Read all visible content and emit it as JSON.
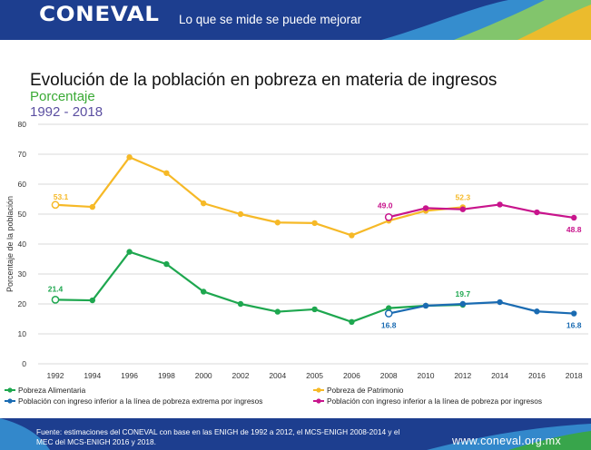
{
  "header": {
    "logo": "CONEVAL",
    "slogan": "Lo que se mide se puede mejorar"
  },
  "footer": {
    "source": "Fuente: estimaciones del CONEVAL con base en las ENIGH de 1992 a 2012, el MCS-ENIGH 2008-2014 y el MEC del MCS-ENIGH 2016 y 2018.",
    "url": "www.coneval.org.mx"
  },
  "colors": {
    "brand_blue": "#1d3e8f",
    "accent_green": "#3aaa35",
    "accent_purple": "#5b4fa1"
  },
  "chart_data": {
    "type": "line",
    "title": "Evolución de la población en pobreza en materia de ingresos",
    "subtitle": "Porcentaje",
    "period": "1992 - 2018",
    "ylabel": "Porcentaje de la población",
    "xlabel": "",
    "ylim": [
      0,
      80
    ],
    "yticks": [
      0,
      10,
      20,
      30,
      40,
      50,
      60,
      70,
      80
    ],
    "categories": [
      "1992",
      "1994",
      "1996",
      "1998",
      "2000",
      "2002",
      "2004",
      "2005",
      "2006",
      "2008",
      "2010",
      "2012",
      "2014",
      "2016",
      "2018"
    ],
    "grid": "horizontal",
    "legend_position": "bottom",
    "series": [
      {
        "name": "Pobreza de Patrimonio",
        "color": "#f6b927",
        "values": [
          53.1,
          52.4,
          69.0,
          63.7,
          53.6,
          50.0,
          47.2,
          47.0,
          42.9,
          47.8,
          51.1,
          52.3,
          null,
          null,
          null
        ]
      },
      {
        "name": "Pobreza Alimentaria",
        "color": "#1ea74f",
        "values": [
          21.4,
          21.2,
          37.4,
          33.3,
          24.1,
          20.0,
          17.4,
          18.2,
          14.0,
          18.6,
          19.4,
          19.7,
          null,
          null,
          null
        ]
      },
      {
        "name": "Población con ingreso inferior a la línea de pobreza extrema por ingresos",
        "color": "#1a6bb2",
        "values": [
          null,
          null,
          null,
          null,
          null,
          null,
          null,
          null,
          null,
          16.8,
          19.4,
          20.0,
          20.6,
          17.5,
          16.8
        ]
      },
      {
        "name": "Población con ingreso inferior a la línea de pobreza por ingresos",
        "color": "#c8148c",
        "values": [
          null,
          null,
          null,
          null,
          null,
          null,
          null,
          null,
          null,
          49.0,
          52.0,
          51.6,
          53.2,
          50.6,
          48.8
        ]
      }
    ],
    "annotations": [
      {
        "series": 0,
        "index": 0,
        "text": "53.1"
      },
      {
        "series": 0,
        "index": 11,
        "text": "52.3"
      },
      {
        "series": 1,
        "index": 0,
        "text": "21.4"
      },
      {
        "series": 1,
        "index": 11,
        "text": "19.7"
      },
      {
        "series": 2,
        "index": 9,
        "text": "16.8"
      },
      {
        "series": 2,
        "index": 14,
        "text": "16.8"
      },
      {
        "series": 3,
        "index": 9,
        "text": "49.0"
      },
      {
        "series": 3,
        "index": 14,
        "text": "48.8"
      }
    ]
  }
}
